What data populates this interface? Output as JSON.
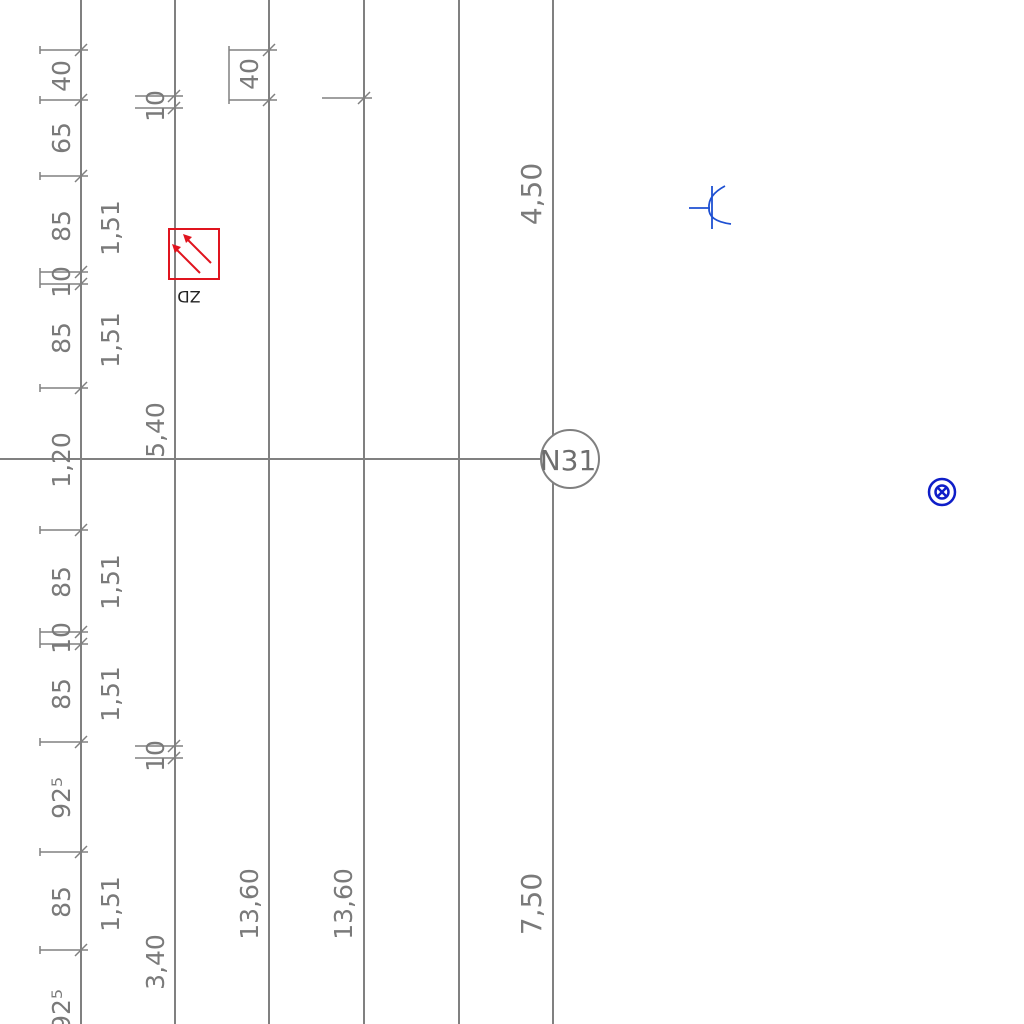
{
  "colors": {
    "line": "#808080",
    "dimension_text": "#7a7a7a",
    "symbol_red": "#e0141e",
    "symbol_blue": "#1e50d2",
    "symbol_dark_blue": "#0f1ec8"
  },
  "dims": {
    "col1": [
      "40",
      "65",
      "85",
      "10",
      "85",
      "1,20",
      "85",
      "10",
      "85",
      "92⁵",
      "85",
      "92⁵"
    ],
    "col2": [
      "1,51",
      "1,51",
      "1,51",
      "1,51",
      "1,51"
    ],
    "col3": [
      "10",
      "5,40",
      "10",
      "3,40"
    ],
    "col4": [
      "40",
      "13,60"
    ],
    "col5": [
      "13,60"
    ],
    "col7": [
      "4,50",
      "7,50"
    ]
  },
  "axis_marker": "N31",
  "outlet_label": "ZD",
  "icons": {
    "outlet": "socket-arrow-icon",
    "lamp": "wall-lamp-icon",
    "device": "circled-x-icon"
  }
}
